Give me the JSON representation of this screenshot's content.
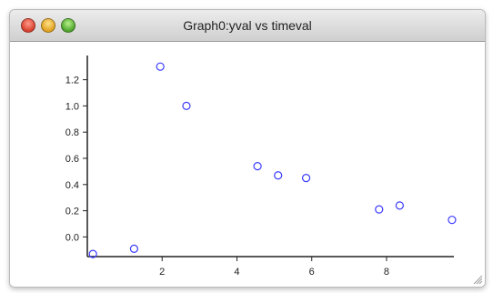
{
  "window": {
    "title": "Graph0:yval vs timeval"
  },
  "icons": {
    "close": "close-button-icon",
    "minimize": "minimize-button-icon",
    "zoom": "zoom-button-icon",
    "resize": "resize-grip-icon"
  },
  "colors": {
    "marker": "#3b3bff",
    "axis": "#222222"
  },
  "chart_data": {
    "type": "scatter",
    "title": "",
    "xlabel": "",
    "ylabel": "",
    "xlim": [
      0,
      9.8
    ],
    "ylim": [
      -0.15,
      1.35
    ],
    "x_ticks": [
      2,
      4,
      6,
      8
    ],
    "y_ticks": [
      0.0,
      0.2,
      0.4,
      0.6,
      0.8,
      1.0,
      1.2
    ],
    "x_tick_labels": [
      "2",
      "4",
      "6",
      "8"
    ],
    "y_tick_labels": [
      "0.0",
      "0.2",
      "0.4",
      "0.6",
      "0.8",
      "1.0",
      "1.2"
    ],
    "series": [
      {
        "marker": "open-circle",
        "x": [
          0.15,
          1.25,
          1.95,
          2.65,
          4.55,
          5.1,
          5.85,
          7.8,
          8.35,
          9.75
        ],
        "y": [
          -0.13,
          -0.09,
          1.3,
          1.0,
          0.54,
          0.47,
          0.45,
          0.21,
          0.24,
          0.13
        ]
      }
    ]
  }
}
